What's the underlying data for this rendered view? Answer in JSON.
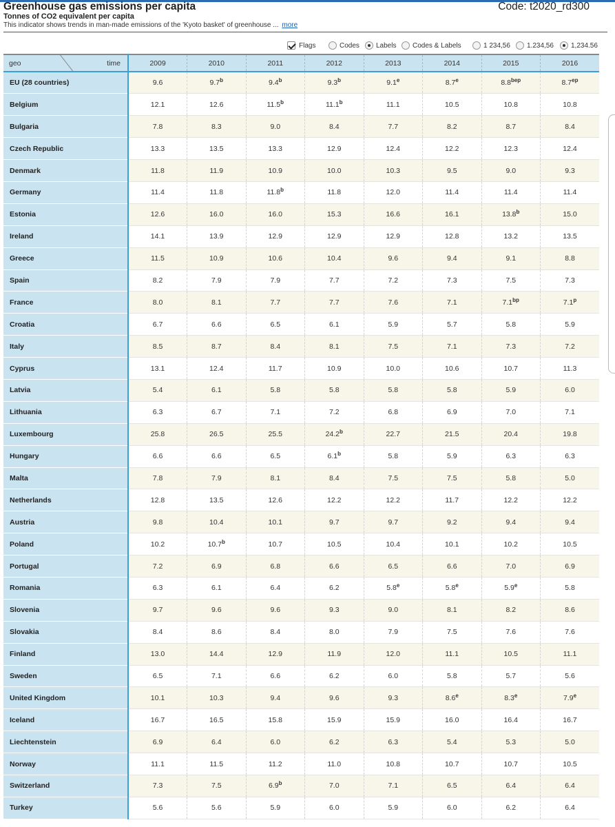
{
  "header": {
    "title": "Greenhouse gas emissions per capita",
    "code": "Code: t2020_rd300",
    "unit": "Tonnes of CO2 equivalent per capita",
    "description": "This indicator shows trends in man-made emissions of the 'Kyoto basket' of greenhouse ...",
    "more_link": "more"
  },
  "options": {
    "flags": {
      "label": "Flags",
      "checked": true
    },
    "codes": {
      "label": "Codes",
      "checked": false
    },
    "labels": {
      "label": "Labels",
      "checked": true
    },
    "codes_labels": {
      "label": "Codes & Labels",
      "checked": false
    },
    "fmt1": {
      "label": "1 234,56",
      "checked": false
    },
    "fmt2": {
      "label": "1.234,56",
      "checked": false
    },
    "fmt3": {
      "label": "1,234.56",
      "checked": true
    }
  },
  "table": {
    "corner_geo": "geo",
    "corner_time": "time",
    "years": [
      "2009",
      "2010",
      "2011",
      "2012",
      "2013",
      "2014",
      "2015",
      "2016"
    ],
    "rows": [
      {
        "geo": "EU (28 countries)",
        "values": [
          "9.6",
          "9.7",
          "9.4",
          "9.3",
          "9.1",
          "8.7",
          "8.8",
          "8.7"
        ],
        "flags": [
          "",
          "b",
          "b",
          "b",
          "e",
          "e",
          "bep",
          "ep"
        ]
      },
      {
        "geo": "Belgium",
        "values": [
          "12.1",
          "12.6",
          "11.5",
          "11.1",
          "11.1",
          "10.5",
          "10.8",
          "10.8"
        ],
        "flags": [
          "",
          "",
          "b",
          "b",
          "",
          "",
          "",
          ""
        ]
      },
      {
        "geo": "Bulgaria",
        "values": [
          "7.8",
          "8.3",
          "9.0",
          "8.4",
          "7.7",
          "8.2",
          "8.7",
          "8.4"
        ],
        "flags": [
          "",
          "",
          "",
          "",
          "",
          "",
          "",
          ""
        ]
      },
      {
        "geo": "Czech Republic",
        "values": [
          "13.3",
          "13.5",
          "13.3",
          "12.9",
          "12.4",
          "12.2",
          "12.3",
          "12.4"
        ],
        "flags": [
          "",
          "",
          "",
          "",
          "",
          "",
          "",
          ""
        ]
      },
      {
        "geo": "Denmark",
        "values": [
          "11.8",
          "11.9",
          "10.9",
          "10.0",
          "10.3",
          "9.5",
          "9.0",
          "9.3"
        ],
        "flags": [
          "",
          "",
          "",
          "",
          "",
          "",
          "",
          ""
        ]
      },
      {
        "geo": "Germany",
        "values": [
          "11.4",
          "11.8",
          "11.8",
          "11.8",
          "12.0",
          "11.4",
          "11.4",
          "11.4"
        ],
        "flags": [
          "",
          "",
          "b",
          "",
          "",
          "",
          "",
          ""
        ]
      },
      {
        "geo": "Estonia",
        "values": [
          "12.6",
          "16.0",
          "16.0",
          "15.3",
          "16.6",
          "16.1",
          "13.8",
          "15.0"
        ],
        "flags": [
          "",
          "",
          "",
          "",
          "",
          "",
          "b",
          ""
        ]
      },
      {
        "geo": "Ireland",
        "values": [
          "14.1",
          "13.9",
          "12.9",
          "12.9",
          "12.9",
          "12.8",
          "13.2",
          "13.5"
        ],
        "flags": [
          "",
          "",
          "",
          "",
          "",
          "",
          "",
          ""
        ]
      },
      {
        "geo": "Greece",
        "values": [
          "11.5",
          "10.9",
          "10.6",
          "10.4",
          "9.6",
          "9.4",
          "9.1",
          "8.8"
        ],
        "flags": [
          "",
          "",
          "",
          "",
          "",
          "",
          "",
          ""
        ]
      },
      {
        "geo": "Spain",
        "values": [
          "8.2",
          "7.9",
          "7.9",
          "7.7",
          "7.2",
          "7.3",
          "7.5",
          "7.3"
        ],
        "flags": [
          "",
          "",
          "",
          "",
          "",
          "",
          "",
          ""
        ]
      },
      {
        "geo": "France",
        "values": [
          "8.0",
          "8.1",
          "7.7",
          "7.7",
          "7.6",
          "7.1",
          "7.1",
          "7.1"
        ],
        "flags": [
          "",
          "",
          "",
          "",
          "",
          "",
          "bp",
          "p"
        ]
      },
      {
        "geo": "Croatia",
        "values": [
          "6.7",
          "6.6",
          "6.5",
          "6.1",
          "5.9",
          "5.7",
          "5.8",
          "5.9"
        ],
        "flags": [
          "",
          "",
          "",
          "",
          "",
          "",
          "",
          ""
        ]
      },
      {
        "geo": "Italy",
        "values": [
          "8.5",
          "8.7",
          "8.4",
          "8.1",
          "7.5",
          "7.1",
          "7.3",
          "7.2"
        ],
        "flags": [
          "",
          "",
          "",
          "",
          "",
          "",
          "",
          ""
        ]
      },
      {
        "geo": "Cyprus",
        "values": [
          "13.1",
          "12.4",
          "11.7",
          "10.9",
          "10.0",
          "10.6",
          "10.7",
          "11.3"
        ],
        "flags": [
          "",
          "",
          "",
          "",
          "",
          "",
          "",
          ""
        ]
      },
      {
        "geo": "Latvia",
        "values": [
          "5.4",
          "6.1",
          "5.8",
          "5.8",
          "5.8",
          "5.8",
          "5.9",
          "6.0"
        ],
        "flags": [
          "",
          "",
          "",
          "",
          "",
          "",
          "",
          ""
        ]
      },
      {
        "geo": "Lithuania",
        "values": [
          "6.3",
          "6.7",
          "7.1",
          "7.2",
          "6.8",
          "6.9",
          "7.0",
          "7.1"
        ],
        "flags": [
          "",
          "",
          "",
          "",
          "",
          "",
          "",
          ""
        ]
      },
      {
        "geo": "Luxembourg",
        "values": [
          "25.8",
          "26.5",
          "25.5",
          "24.2",
          "22.7",
          "21.5",
          "20.4",
          "19.8"
        ],
        "flags": [
          "",
          "",
          "",
          "b",
          "",
          "",
          "",
          ""
        ]
      },
      {
        "geo": "Hungary",
        "values": [
          "6.6",
          "6.6",
          "6.5",
          "6.1",
          "5.8",
          "5.9",
          "6.3",
          "6.3"
        ],
        "flags": [
          "",
          "",
          "",
          "b",
          "",
          "",
          "",
          ""
        ]
      },
      {
        "geo": "Malta",
        "values": [
          "7.8",
          "7.9",
          "8.1",
          "8.4",
          "7.5",
          "7.5",
          "5.8",
          "5.0"
        ],
        "flags": [
          "",
          "",
          "",
          "",
          "",
          "",
          "",
          ""
        ]
      },
      {
        "geo": "Netherlands",
        "values": [
          "12.8",
          "13.5",
          "12.6",
          "12.2",
          "12.2",
          "11.7",
          "12.2",
          "12.2"
        ],
        "flags": [
          "",
          "",
          "",
          "",
          "",
          "",
          "",
          ""
        ]
      },
      {
        "geo": "Austria",
        "values": [
          "9.8",
          "10.4",
          "10.1",
          "9.7",
          "9.7",
          "9.2",
          "9.4",
          "9.4"
        ],
        "flags": [
          "",
          "",
          "",
          "",
          "",
          "",
          "",
          ""
        ]
      },
      {
        "geo": "Poland",
        "values": [
          "10.2",
          "10.7",
          "10.7",
          "10.5",
          "10.4",
          "10.1",
          "10.2",
          "10.5"
        ],
        "flags": [
          "",
          "b",
          "",
          "",
          "",
          "",
          "",
          ""
        ]
      },
      {
        "geo": "Portugal",
        "values": [
          "7.2",
          "6.9",
          "6.8",
          "6.6",
          "6.5",
          "6.6",
          "7.0",
          "6.9"
        ],
        "flags": [
          "",
          "",
          "",
          "",
          "",
          "",
          "",
          ""
        ]
      },
      {
        "geo": "Romania",
        "values": [
          "6.3",
          "6.1",
          "6.4",
          "6.2",
          "5.8",
          "5.8",
          "5.9",
          "5.8"
        ],
        "flags": [
          "",
          "",
          "",
          "",
          "e",
          "e",
          "e",
          ""
        ]
      },
      {
        "geo": "Slovenia",
        "values": [
          "9.7",
          "9.6",
          "9.6",
          "9.3",
          "9.0",
          "8.1",
          "8.2",
          "8.6"
        ],
        "flags": [
          "",
          "",
          "",
          "",
          "",
          "",
          "",
          ""
        ]
      },
      {
        "geo": "Slovakia",
        "values": [
          "8.4",
          "8.6",
          "8.4",
          "8.0",
          "7.9",
          "7.5",
          "7.6",
          "7.6"
        ],
        "flags": [
          "",
          "",
          "",
          "",
          "",
          "",
          "",
          ""
        ]
      },
      {
        "geo": "Finland",
        "values": [
          "13.0",
          "14.4",
          "12.9",
          "11.9",
          "12.0",
          "11.1",
          "10.5",
          "11.1"
        ],
        "flags": [
          "",
          "",
          "",
          "",
          "",
          "",
          "",
          ""
        ]
      },
      {
        "geo": "Sweden",
        "values": [
          "6.5",
          "7.1",
          "6.6",
          "6.2",
          "6.0",
          "5.8",
          "5.7",
          "5.6"
        ],
        "flags": [
          "",
          "",
          "",
          "",
          "",
          "",
          "",
          ""
        ]
      },
      {
        "geo": "United Kingdom",
        "values": [
          "10.1",
          "10.3",
          "9.4",
          "9.6",
          "9.3",
          "8.6",
          "8.3",
          "7.9"
        ],
        "flags": [
          "",
          "",
          "",
          "",
          "",
          "e",
          "e",
          "e"
        ]
      },
      {
        "geo": "Iceland",
        "values": [
          "16.7",
          "16.5",
          "15.8",
          "15.9",
          "15.9",
          "16.0",
          "16.4",
          "16.7"
        ],
        "flags": [
          "",
          "",
          "",
          "",
          "",
          "",
          "",
          ""
        ]
      },
      {
        "geo": "Liechtenstein",
        "values": [
          "6.9",
          "6.4",
          "6.0",
          "6.2",
          "6.3",
          "5.4",
          "5.3",
          "5.0"
        ],
        "flags": [
          "",
          "",
          "",
          "",
          "",
          "",
          "",
          ""
        ]
      },
      {
        "geo": "Norway",
        "values": [
          "11.1",
          "11.5",
          "11.2",
          "11.0",
          "10.8",
          "10.7",
          "10.7",
          "10.5"
        ],
        "flags": [
          "",
          "",
          "",
          "",
          "",
          "",
          "",
          ""
        ]
      },
      {
        "geo": "Switzerland",
        "values": [
          "7.3",
          "7.5",
          "6.9",
          "7.0",
          "7.1",
          "6.5",
          "6.4",
          "6.4"
        ],
        "flags": [
          "",
          "",
          "b",
          "",
          "",
          "",
          "",
          ""
        ]
      },
      {
        "geo": "Turkey",
        "values": [
          "5.6",
          "5.6",
          "5.9",
          "6.0",
          "5.9",
          "6.0",
          "6.2",
          "6.4"
        ],
        "flags": [
          "",
          "",
          "",
          "",
          "",
          "",
          "",
          ""
        ]
      }
    ]
  }
}
